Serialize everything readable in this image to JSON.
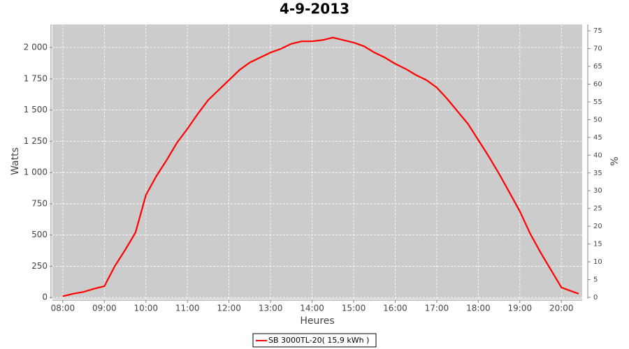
{
  "chart_data": {
    "type": "line",
    "title": "4-9-2013",
    "xlabel": "Heures",
    "ylabel": "Watts",
    "y2label": "%",
    "x": [
      "08:00",
      "08:15",
      "08:30",
      "08:45",
      "09:00",
      "09:15",
      "09:30",
      "09:45",
      "10:00",
      "10:15",
      "10:30",
      "10:45",
      "11:00",
      "11:15",
      "11:30",
      "11:45",
      "12:00",
      "12:15",
      "12:30",
      "12:45",
      "13:00",
      "13:15",
      "13:30",
      "13:45",
      "14:00",
      "14:15",
      "14:30",
      "14:45",
      "15:00",
      "15:15",
      "15:30",
      "15:45",
      "16:00",
      "16:15",
      "16:30",
      "16:45",
      "17:00",
      "17:15",
      "17:30",
      "17:45",
      "18:00",
      "18:15",
      "18:30",
      "18:45",
      "19:00",
      "19:15",
      "19:30",
      "19:45",
      "20:00",
      "20:15",
      "20:25"
    ],
    "series": [
      {
        "name": "SB 3000TL-20( 15,9 kWh )",
        "color": "#ff0000",
        "values": [
          10,
          30,
          45,
          70,
          90,
          250,
          380,
          520,
          820,
          970,
          1100,
          1240,
          1350,
          1470,
          1580,
          1660,
          1740,
          1820,
          1880,
          1920,
          1960,
          1990,
          2030,
          2050,
          2050,
          2060,
          2080,
          2060,
          2040,
          2010,
          1960,
          1920,
          1870,
          1830,
          1780,
          1740,
          1680,
          1590,
          1490,
          1390,
          1260,
          1130,
          990,
          840,
          690,
          510,
          360,
          220,
          80,
          50,
          30
        ]
      }
    ],
    "xlim": [
      "07:45",
      "20:30"
    ],
    "xticks": [
      "08:00",
      "09:00",
      "10:00",
      "11:00",
      "12:00",
      "13:00",
      "14:00",
      "15:00",
      "16:00",
      "17:00",
      "18:00",
      "19:00",
      "20:00"
    ],
    "ylim": [
      -10,
      2185
    ],
    "yticks": [
      0,
      250,
      500,
      750,
      {
        "value": 1000,
        "label": "1 000"
      },
      {
        "value": 1250,
        "label": "1 250"
      },
      {
        "value": 1500,
        "label": "1 500"
      },
      {
        "value": 1750,
        "label": "1 750"
      },
      {
        "value": 2000,
        "label": "2 000"
      }
    ],
    "y2lim": [
      -0.4,
      76.8
    ],
    "y2ticks": [
      0,
      5,
      10,
      15,
      20,
      25,
      30,
      35,
      40,
      45,
      50,
      55,
      60,
      65,
      70,
      75
    ],
    "grid": true
  }
}
